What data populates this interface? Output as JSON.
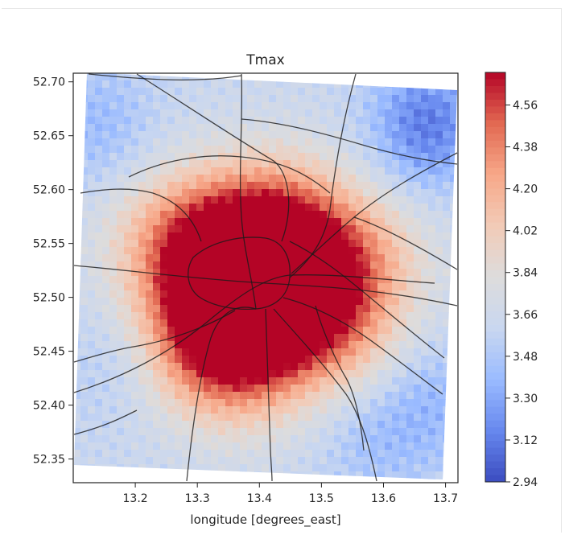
{
  "chart_data": {
    "type": "heatmap",
    "title": "Tmax",
    "xlabel": "longitude [degrees_east]",
    "ylabel": "",
    "xlim": [
      13.1,
      13.72
    ],
    "ylim": [
      52.328,
      52.708
    ],
    "x_ticks": [
      13.2,
      13.3,
      13.4,
      13.5,
      13.6,
      13.7
    ],
    "x_tick_labels": [
      "13.2",
      "13.3",
      "13.4",
      "13.5",
      "13.6",
      "13.7"
    ],
    "y_ticks": [
      52.35,
      52.4,
      52.45,
      52.5,
      52.55,
      52.6,
      52.65,
      52.7
    ],
    "y_tick_labels": [
      "52.35",
      "52.40",
      "52.45",
      "52.50",
      "52.55",
      "52.60",
      "52.65",
      "52.70"
    ],
    "colorbar": {
      "min": 2.94,
      "max": 4.7,
      "ticks": [
        2.94,
        3.12,
        3.3,
        3.48,
        3.66,
        3.84,
        4.02,
        4.2,
        4.38,
        4.56
      ],
      "tick_labels": [
        "2.94",
        "3.12",
        "3.30",
        "3.48",
        "3.66",
        "3.84",
        "4.02",
        "4.20",
        "4.38",
        "4.56"
      ],
      "colormap": "coolwarm",
      "colors": [
        "#3b4cc0",
        "#6788ee",
        "#9abbff",
        "#c9d7f0",
        "#dddcdc",
        "#f2cbb7",
        "#f7a889",
        "#e26952",
        "#b40426"
      ]
    },
    "field": {
      "background": 3.62,
      "hotspots": [
        {
          "lon": 13.4,
          "lat": 52.505,
          "value": 4.56
        },
        {
          "lon": 13.36,
          "lat": 52.495,
          "value": 4.5
        },
        {
          "lon": 13.47,
          "lat": 52.52,
          "value": 4.4
        },
        {
          "lon": 13.43,
          "lat": 52.57,
          "value": 4.32
        },
        {
          "lon": 13.33,
          "lat": 52.55,
          "value": 4.25
        },
        {
          "lon": 13.26,
          "lat": 52.55,
          "value": 4.12
        },
        {
          "lon": 13.52,
          "lat": 52.47,
          "value": 4.18
        },
        {
          "lon": 13.37,
          "lat": 52.44,
          "value": 4.22
        },
        {
          "lon": 13.57,
          "lat": 52.54,
          "value": 4.05
        },
        {
          "lon": 13.3,
          "lat": 52.46,
          "value": 4.1
        }
      ],
      "coldspots": [
        {
          "lon": 13.67,
          "lat": 52.66,
          "value": 3.12
        },
        {
          "lon": 13.14,
          "lat": 52.66,
          "value": 3.4
        },
        {
          "lon": 13.68,
          "lat": 52.4,
          "value": 3.4
        },
        {
          "lon": 13.17,
          "lat": 52.44,
          "value": 3.5
        },
        {
          "lon": 13.58,
          "lat": 52.37,
          "value": 3.45
        }
      ]
    }
  }
}
